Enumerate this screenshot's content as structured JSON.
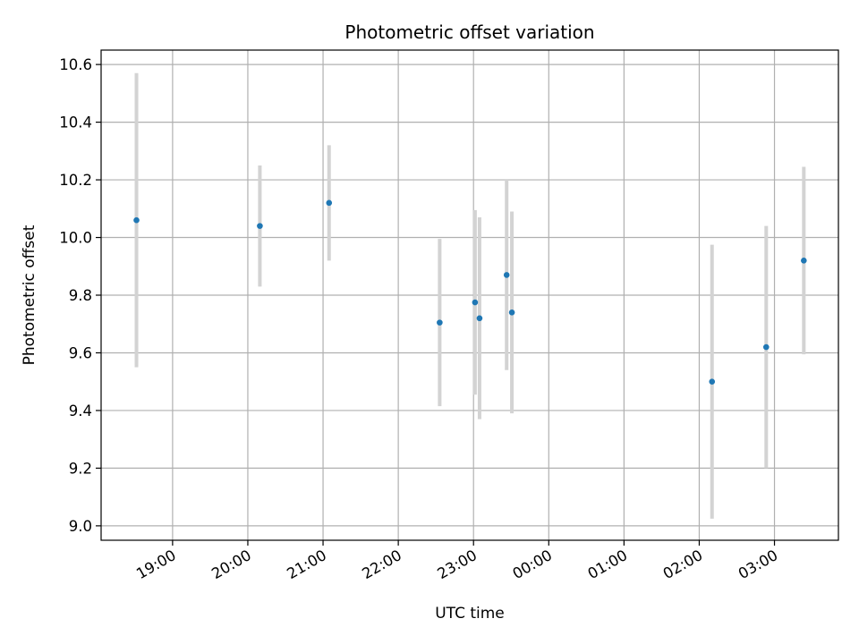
{
  "chart_data": {
    "type": "scatter",
    "title": "Photometric offset variation",
    "xlabel": "UTC time",
    "ylabel": "Photometric offset",
    "x_ticks": [
      "19:00",
      "20:00",
      "21:00",
      "22:00",
      "23:00",
      "00:00",
      "01:00",
      "02:00",
      "03:00"
    ],
    "x_tick_hours": [
      19,
      20,
      21,
      22,
      23,
      24,
      25,
      26,
      27
    ],
    "xlim_hours": [
      18.05,
      27.85
    ],
    "y_ticks": [
      "9.0",
      "9.2",
      "9.4",
      "9.6",
      "9.8",
      "10.0",
      "10.2",
      "10.4",
      "10.6"
    ],
    "y_tick_values": [
      9.0,
      9.2,
      9.4,
      9.6,
      9.8,
      10.0,
      10.2,
      10.4,
      10.6
    ],
    "ylim": [
      8.95,
      10.65
    ],
    "grid": true,
    "point_color": "#1f77b4",
    "errorbar_color": "#d3d3d3",
    "points": [
      {
        "time": "18:31",
        "hours": 18.52,
        "y": 10.06,
        "err": 0.51
      },
      {
        "time": "20:09",
        "hours": 20.16,
        "y": 10.04,
        "err": 0.21
      },
      {
        "time": "21:05",
        "hours": 21.08,
        "y": 10.12,
        "err": 0.2
      },
      {
        "time": "22:33",
        "hours": 22.55,
        "y": 9.705,
        "err": 0.29
      },
      {
        "time": "23:01",
        "hours": 23.02,
        "y": 9.775,
        "err": 0.32
      },
      {
        "time": "23:05",
        "hours": 23.08,
        "y": 9.72,
        "err": 0.35
      },
      {
        "time": "23:26",
        "hours": 23.44,
        "y": 9.87,
        "err": 0.33
      },
      {
        "time": "23:31",
        "hours": 23.51,
        "y": 9.74,
        "err": 0.35
      },
      {
        "time": "02:10",
        "hours": 26.17,
        "y": 9.5,
        "err": 0.475
      },
      {
        "time": "02:53",
        "hours": 26.89,
        "y": 9.62,
        "err": 0.42
      },
      {
        "time": "03:22",
        "hours": 27.39,
        "y": 9.92,
        "err": 0.325
      }
    ]
  }
}
